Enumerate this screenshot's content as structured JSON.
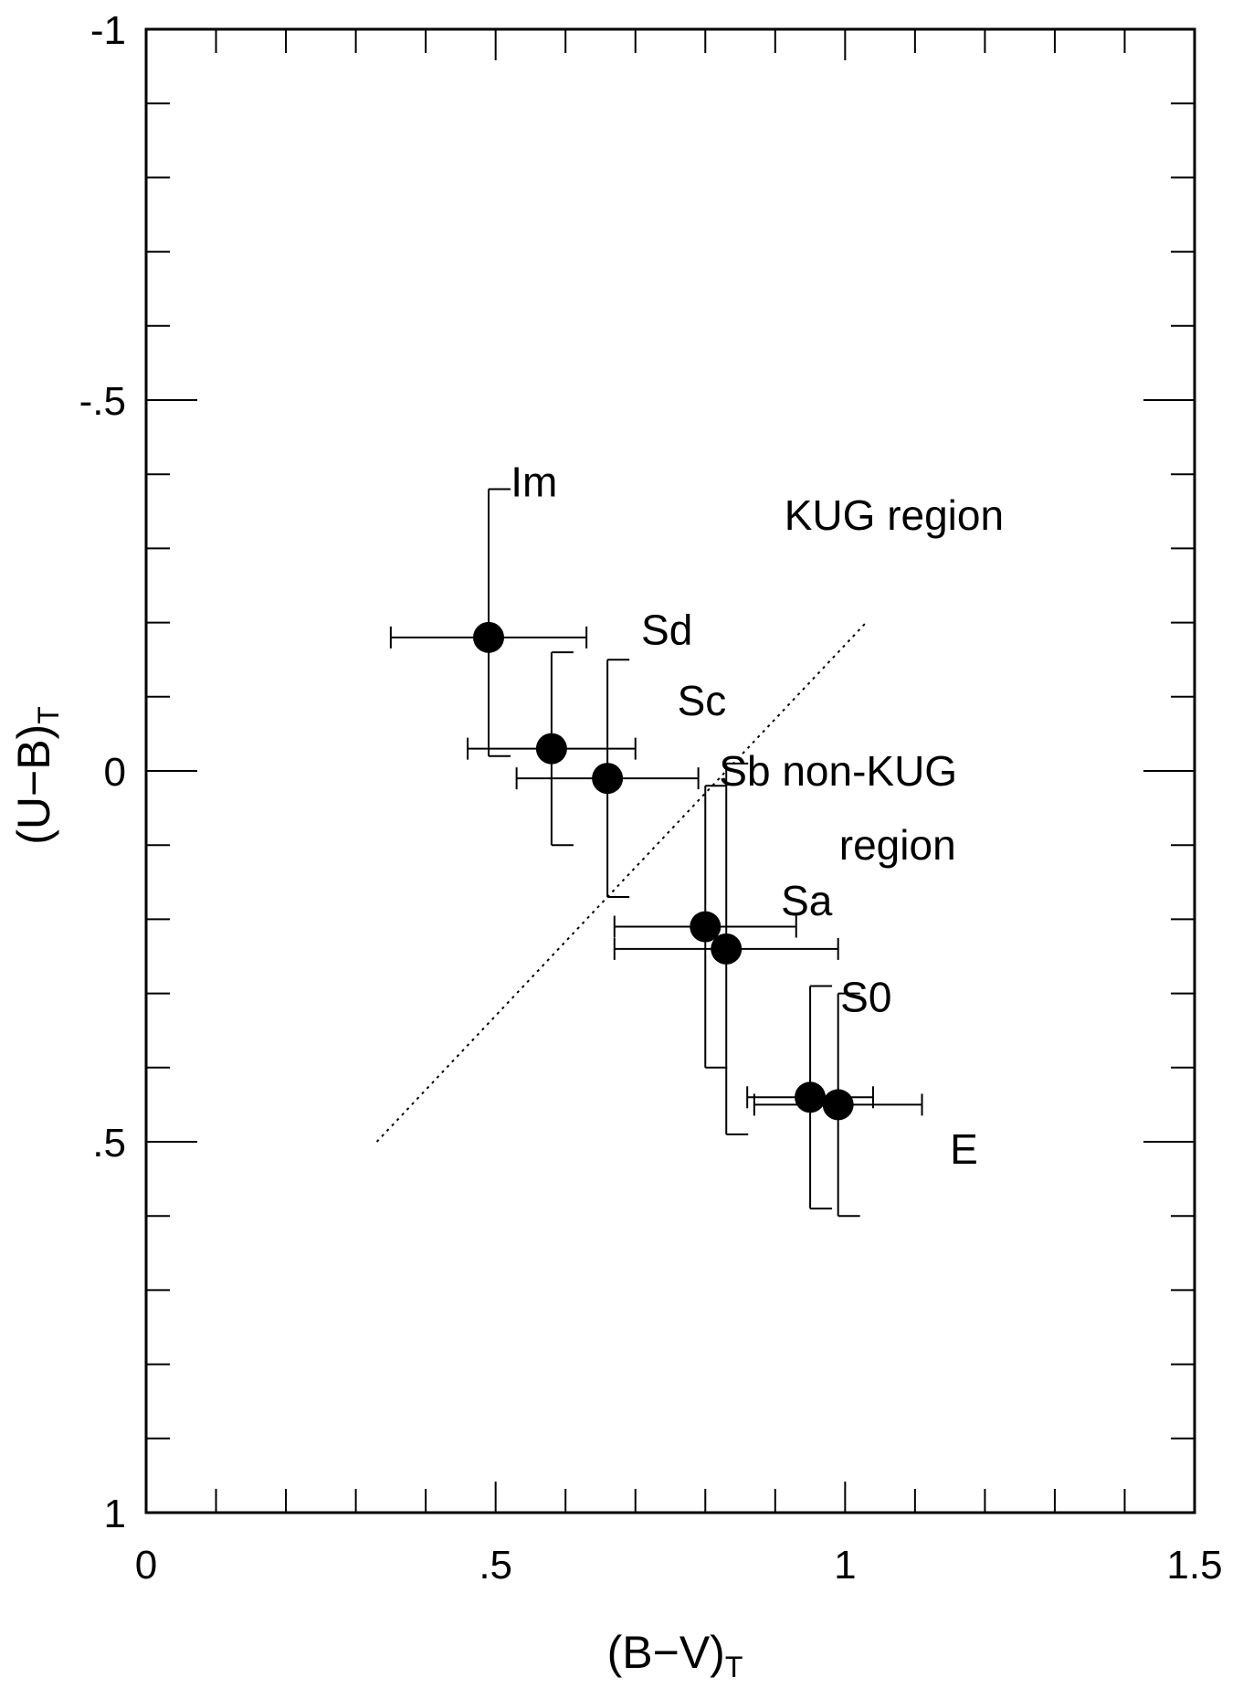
{
  "chart_data": {
    "type": "scatter",
    "title": "",
    "xlabel": "(B−V)",
    "xlabel_subscript": "T",
    "ylabel": "(U−B)",
    "ylabel_subscript": "T",
    "xlim": [
      0,
      1.5
    ],
    "ylim": [
      1,
      -1
    ],
    "y_inverted": true,
    "grid": false,
    "x_ticks": [
      {
        "value": 0,
        "label": "0"
      },
      {
        "value": 0.5,
        "label": ".5"
      },
      {
        "value": 1,
        "label": "1"
      },
      {
        "value": 1.5,
        "label": "1.5"
      }
    ],
    "y_ticks": [
      {
        "value": -1,
        "label": "-1"
      },
      {
        "value": -0.5,
        "label": "-.5"
      },
      {
        "value": 0,
        "label": "0"
      },
      {
        "value": 0.5,
        "label": ".5"
      },
      {
        "value": 1,
        "label": "1"
      }
    ],
    "points": [
      {
        "type": "Im",
        "x": 0.49,
        "y": -0.18,
        "x_err": 0.14,
        "y_err_low": 0.16,
        "y_err_high": 0.2
      },
      {
        "type": "Sd",
        "x": 0.58,
        "y": -0.03,
        "x_err": 0.12,
        "y_err_low": 0.13,
        "y_err_high": 0.13
      },
      {
        "type": "Sc",
        "x": 0.66,
        "y": 0.01,
        "x_err": 0.13,
        "y_err_low": 0.16,
        "y_err_high": 0.16
      },
      {
        "type": "Sb",
        "x": 0.8,
        "y": 0.21,
        "x_err": 0.13,
        "y_err_low": 0.19,
        "y_err_high": 0.19
      },
      {
        "type": "Sa",
        "x": 0.83,
        "y": 0.24,
        "x_err": 0.16,
        "y_err_low": 0.25,
        "y_err_high": 0.25
      },
      {
        "type": "S0",
        "x": 0.95,
        "y": 0.44,
        "x_err": 0.09,
        "y_err_low": 0.15,
        "y_err_high": 0.15
      },
      {
        "type": "E",
        "x": 0.99,
        "y": 0.45,
        "x_err": 0.12,
        "y_err_low": 0.15,
        "y_err_high": 0.15
      }
    ],
    "dividing_line": {
      "x": [
        0.33,
        1.03
      ],
      "y": [
        0.5,
        -0.2
      ],
      "style": "dotted"
    },
    "annotations": [
      {
        "text": "Im",
        "x": 0.555,
        "y": -0.39
      },
      {
        "text": "KUG region",
        "x": 1.07,
        "y": -0.345
      },
      {
        "text": "Sd",
        "x": 0.745,
        "y": -0.19
      },
      {
        "text": "Sc",
        "x": 0.795,
        "y": -0.095
      },
      {
        "text": "Sb non-KUG",
        "x": 0.99,
        "y": 0.0
      },
      {
        "text": "region",
        "x": 1.075,
        "y": 0.1
      },
      {
        "text": "Sa",
        "x": 0.945,
        "y": 0.175
      },
      {
        "text": "S0",
        "x": 1.03,
        "y": 0.305
      },
      {
        "text": "E",
        "x": 1.17,
        "y": 0.51
      }
    ],
    "colors": {
      "points": "#000000",
      "axes": "#000000",
      "background": "#ffffff"
    }
  }
}
